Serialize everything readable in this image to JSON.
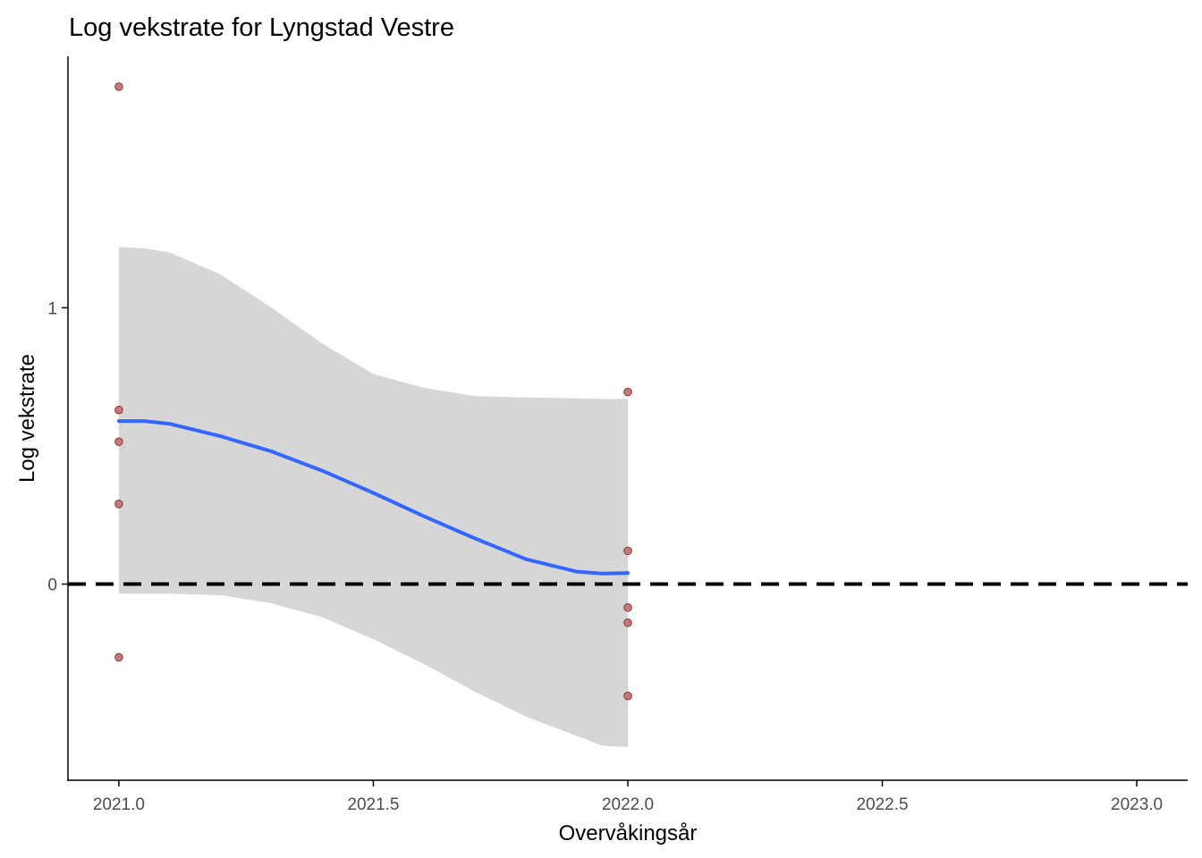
{
  "chart_data": {
    "type": "scatter",
    "title": "Log vekstrate for Lyngstad Vestre",
    "xlabel": "Overvåkingsår",
    "ylabel": "Log vekstrate",
    "xlim": [
      2020.9,
      2023.1
    ],
    "ylim": [
      -0.71,
      1.91
    ],
    "x_ticks": [
      2021.0,
      2021.5,
      2022.0,
      2022.5,
      2023.0
    ],
    "x_tick_labels": [
      "2021.0",
      "2021.5",
      "2022.0",
      "2022.5",
      "2023.0"
    ],
    "y_ticks": [
      0,
      1
    ],
    "y_tick_labels": [
      "0",
      "1"
    ],
    "grid": false,
    "legend": "none",
    "reference_line": {
      "y": 0,
      "style": "dashed"
    },
    "points": [
      {
        "x": 2021.0,
        "y": 1.8
      },
      {
        "x": 2021.0,
        "y": 0.63
      },
      {
        "x": 2021.0,
        "y": 0.515
      },
      {
        "x": 2021.0,
        "y": 0.29
      },
      {
        "x": 2021.0,
        "y": -0.265
      },
      {
        "x": 2022.0,
        "y": 0.695
      },
      {
        "x": 2022.0,
        "y": 0.12
      },
      {
        "x": 2022.0,
        "y": -0.085
      },
      {
        "x": 2022.0,
        "y": -0.14
      },
      {
        "x": 2022.0,
        "y": -0.405
      }
    ],
    "smooth": {
      "x": [
        2021.0,
        2021.05,
        2021.1,
        2021.2,
        2021.3,
        2021.4,
        2021.5,
        2021.6,
        2021.7,
        2021.8,
        2021.9,
        2021.95,
        2022.0
      ],
      "y": [
        0.59,
        0.59,
        0.58,
        0.535,
        0.48,
        0.41,
        0.33,
        0.245,
        0.165,
        0.09,
        0.045,
        0.038,
        0.04
      ],
      "lower": [
        -0.035,
        -0.035,
        -0.035,
        -0.04,
        -0.07,
        -0.12,
        -0.2,
        -0.29,
        -0.39,
        -0.48,
        -0.55,
        -0.585,
        -0.59
      ],
      "upper": [
        1.22,
        1.215,
        1.2,
        1.12,
        1.0,
        0.87,
        0.76,
        0.71,
        0.68,
        0.675,
        0.672,
        0.67,
        0.67
      ]
    },
    "colors": {
      "band": "#d6d6d6",
      "line": "#3366ff",
      "point_fill": "#c47a7a",
      "point_stroke": "#8a3535",
      "reference": "#000000",
      "axis": "#000000"
    }
  }
}
